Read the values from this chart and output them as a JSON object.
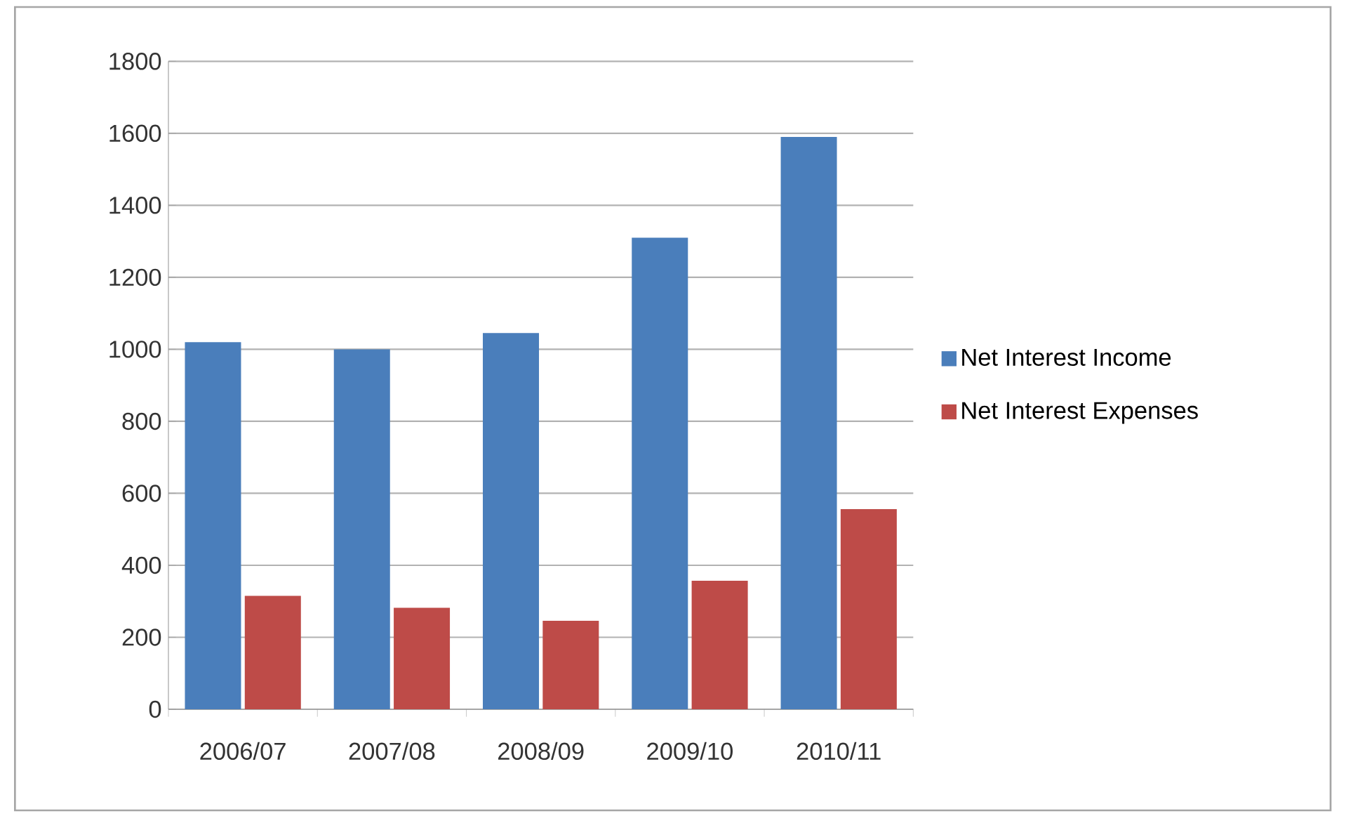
{
  "chart_data": {
    "type": "bar",
    "categories": [
      "2006/07",
      "2007/08",
      "2008/09",
      "2009/10",
      "2010/11"
    ],
    "series": [
      {
        "name": "Net Interest Income",
        "color": "#4a7ebb",
        "values": [
          1020,
          1000,
          1045,
          1310,
          1590
        ]
      },
      {
        "name": "Net Interest Expenses",
        "color": "#be4b48",
        "values": [
          315,
          282,
          246,
          357,
          556
        ]
      }
    ],
    "ylim": [
      0,
      1800
    ],
    "yticks": [
      0,
      200,
      400,
      600,
      800,
      1000,
      1200,
      1400,
      1600,
      1800
    ],
    "grid": "y",
    "legend": "right"
  }
}
